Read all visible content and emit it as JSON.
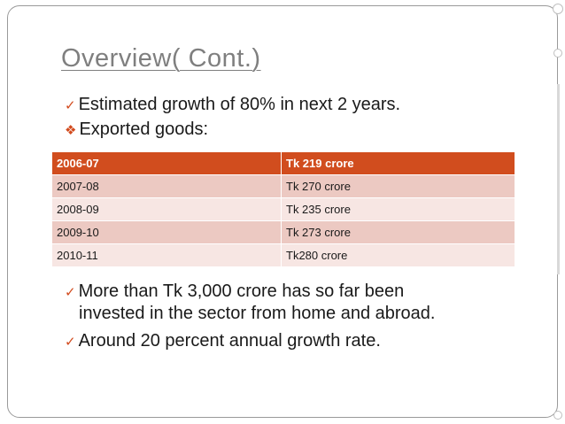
{
  "slide": {
    "title": "Overview( Cont.)"
  },
  "bullets": [
    {
      "icon": "check-mark-icon",
      "glyph": "✓",
      "text": "Estimated growth of 80% in next 2 years."
    },
    {
      "icon": "diamond-dots-icon",
      "glyph": "❖",
      "text": "Exported goods:"
    },
    {
      "icon": "check-mark-icon",
      "glyph": "✓",
      "text": "More than Tk 3,000 crore has so far been",
      "text_cont": "invested in the sector from home and abroad."
    },
    {
      "icon": "check-mark-icon",
      "glyph": "✓",
      "text": "Around 20 percent annual growth rate."
    }
  ],
  "export_table": {
    "rows": [
      {
        "year": "2006-07",
        "value": "Tk 219 crore"
      },
      {
        "year": "2007-08",
        "value": "Tk 270 crore"
      },
      {
        "year": "2008-09",
        "value": "Tk 235 crore"
      },
      {
        "year": "2009-10",
        "value": "Tk 273 crore"
      },
      {
        "year": "2010-11",
        "value": "Tk280 crore"
      }
    ]
  },
  "colors": {
    "accent": "#d14d1e",
    "row_dark": "#ecc9c2",
    "row_light": "#f7e6e3",
    "title": "#7f7f7f"
  }
}
